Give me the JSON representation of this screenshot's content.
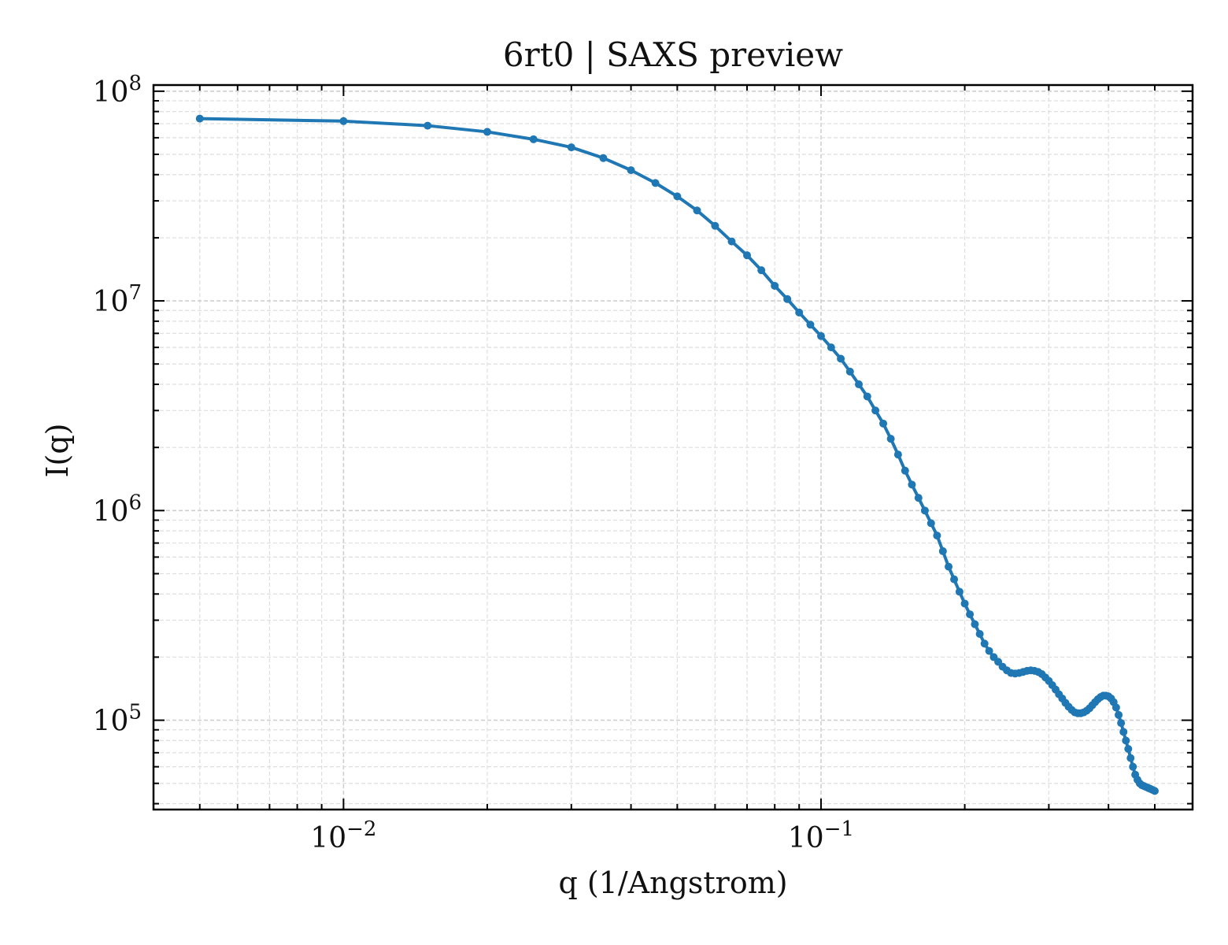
{
  "chart_data": {
    "type": "line",
    "title": "6rt0 | SAXS preview",
    "xlabel": "q (1/Angstrom)",
    "ylabel": "I(q)",
    "x_scale": "log",
    "y_scale": "log",
    "xlim": [
      0.004,
      0.6
    ],
    "ylim": [
      37500,
      107000000
    ],
    "grid": true,
    "legend": "none",
    "color": "#1f77b4",
    "x_ticks": [
      {
        "value": 0.01,
        "mantissa": "10",
        "exponent": "−2"
      },
      {
        "value": 0.1,
        "mantissa": "10",
        "exponent": "−1"
      }
    ],
    "y_ticks": [
      {
        "value": 100000,
        "mantissa": "10",
        "exponent": "5"
      },
      {
        "value": 1000000,
        "mantissa": "10",
        "exponent": "6"
      },
      {
        "value": 10000000,
        "mantissa": "10",
        "exponent": "7"
      },
      {
        "value": 100000000,
        "mantissa": "10",
        "exponent": "8"
      }
    ],
    "series": [
      {
        "x": [
          0.005,
          0.01,
          0.015,
          0.02,
          0.025,
          0.03,
          0.035,
          0.04,
          0.045,
          0.05,
          0.055,
          0.06,
          0.065,
          0.07,
          0.075,
          0.08,
          0.085,
          0.09,
          0.095,
          0.1,
          0.105,
          0.11,
          0.115,
          0.12,
          0.125,
          0.13,
          0.135,
          0.14,
          0.145,
          0.15,
          0.155,
          0.16,
          0.165,
          0.17,
          0.175,
          0.18,
          0.185,
          0.19,
          0.195,
          0.2,
          0.205,
          0.21,
          0.215,
          0.22,
          0.225,
          0.23,
          0.235,
          0.24,
          0.245,
          0.25,
          0.255,
          0.26,
          0.265,
          0.27,
          0.275,
          0.28,
          0.285,
          0.29,
          0.295,
          0.3,
          0.305,
          0.31,
          0.315,
          0.32,
          0.325,
          0.33,
          0.335,
          0.34,
          0.345,
          0.35,
          0.355,
          0.36,
          0.365,
          0.37,
          0.375,
          0.38,
          0.385,
          0.39,
          0.395,
          0.4,
          0.405,
          0.41,
          0.415,
          0.42,
          0.425,
          0.43,
          0.435,
          0.44,
          0.445,
          0.45,
          0.455,
          0.46,
          0.465,
          0.47,
          0.475,
          0.48,
          0.485,
          0.49,
          0.495,
          0.5
        ],
        "y": [
          74000000,
          72000000,
          68500000,
          64000000,
          59000000,
          54000000,
          48000000,
          42000000,
          36500000,
          31500000,
          27000000,
          22800000,
          19200000,
          16500000,
          14000000,
          11800000,
          10200000,
          8800000,
          7700000,
          6800000,
          6000000,
          5300000,
          4600000,
          4000000,
          3500000,
          3000000,
          2600000,
          2200000,
          1850000,
          1550000,
          1330000,
          1150000,
          1000000,
          870000,
          760000,
          640000,
          540000,
          470000,
          410000,
          360000,
          320000,
          287000,
          258000,
          232000,
          214000,
          200000,
          190000,
          180000,
          173000,
          168000,
          167000,
          168000,
          170000,
          172000,
          173000,
          172000,
          170000,
          166000,
          160000,
          154000,
          147000,
          140000,
          133000,
          127000,
          121000,
          116000,
          112000,
          109000,
          108000,
          108000,
          109000,
          111000,
          114000,
          118000,
          122000,
          126000,
          129000,
          131000,
          131000,
          130000,
          127000,
          122000,
          115000,
          106000,
          97000,
          88000,
          80000,
          73000,
          66000,
          60000,
          55000,
          52000,
          50000,
          49000,
          48500,
          48000,
          47500,
          47000,
          46500,
          46000
        ]
      }
    ]
  }
}
